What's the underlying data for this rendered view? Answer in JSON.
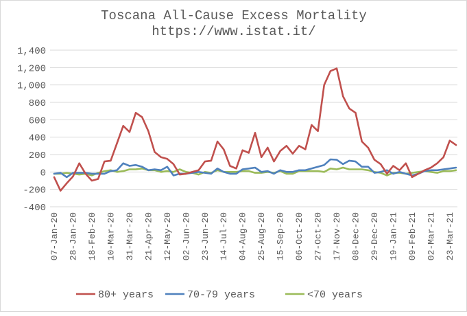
{
  "chart_data": {
    "type": "line",
    "title": "Toscana All-Cause Excess Mortality",
    "subtitle": "https://www.istat.it/",
    "xlabel": "",
    "ylabel": "",
    "ylim": [
      -400,
      1400
    ],
    "yticks": [
      "-400",
      "-200",
      "0",
      "200",
      "400",
      "600",
      "800",
      "1,000",
      "1,200",
      "1,400"
    ],
    "ytick_values": [
      -400,
      -200,
      0,
      200,
      400,
      600,
      800,
      1000,
      1200,
      1400
    ],
    "grid": true,
    "legend_position": "bottom",
    "x": [
      "07-Jan-20",
      "14-Jan-20",
      "21-Jan-20",
      "28-Jan-20",
      "04-Feb-20",
      "11-Feb-20",
      "18-Feb-20",
      "25-Feb-20",
      "03-Mar-20",
      "10-Mar-20",
      "17-Mar-20",
      "24-Mar-20",
      "31-Mar-20",
      "07-Apr-20",
      "14-Apr-20",
      "21-Apr-20",
      "28-Apr-20",
      "05-May-20",
      "12-May-20",
      "19-May-20",
      "26-May-20",
      "02-Jun-20",
      "09-Jun-20",
      "16-Jun-20",
      "23-Jun-20",
      "30-Jun-20",
      "07-Jul-20",
      "14-Jul-20",
      "21-Jul-20",
      "28-Jul-20",
      "04-Aug-20",
      "11-Aug-20",
      "18-Aug-20",
      "25-Aug-20",
      "01-Sep-20",
      "08-Sep-20",
      "15-Sep-20",
      "22-Sep-20",
      "29-Sep-20",
      "06-Oct-20",
      "13-Oct-20",
      "20-Oct-20",
      "27-Oct-20",
      "03-Nov-20",
      "10-Nov-20",
      "17-Nov-20",
      "24-Nov-20",
      "01-Dec-20",
      "08-Dec-20",
      "15-Dec-20",
      "22-Dec-20",
      "29-Dec-20",
      "05-Jan-21",
      "12-Jan-21",
      "19-Jan-21",
      "26-Jan-21",
      "02-Feb-21",
      "09-Feb-21",
      "16-Feb-21",
      "23-Feb-21",
      "02-Mar-21",
      "09-Mar-21",
      "16-Mar-21",
      "23-Mar-21",
      "30-Mar-21"
    ],
    "x_tick_labels": [
      "07-Jan-20",
      "28-Jan-20",
      "18-Feb-20",
      "10-Mar-20",
      "31-Mar-20",
      "21-Apr-20",
      "12-May-20",
      "02-Jun-20",
      "23-Jun-20",
      "14-Jul-20",
      "04-Aug-20",
      "25-Aug-20",
      "15-Sep-20",
      "06-Oct-20",
      "27-Oct-20",
      "17-Nov-20",
      "08-Dec-20",
      "29-Dec-20",
      "19-Jan-21",
      "09-Feb-21",
      "02-Mar-21",
      "23-Mar-21"
    ],
    "x_tick_every": 3,
    "series": [
      {
        "name": "80+ years",
        "color": "#c0504d",
        "values": [
          -60,
          -215,
          -130,
          -50,
          100,
          -20,
          -100,
          -80,
          120,
          130,
          330,
          530,
          460,
          680,
          630,
          470,
          230,
          170,
          150,
          90,
          -30,
          -20,
          0,
          20,
          120,
          130,
          350,
          260,
          70,
          40,
          250,
          220,
          450,
          170,
          280,
          120,
          240,
          300,
          210,
          300,
          260,
          540,
          470,
          1000,
          1160,
          1190,
          870,
          730,
          680,
          350,
          280,
          140,
          90,
          -20,
          70,
          20,
          100,
          -60,
          -20,
          20,
          50,
          100,
          170,
          360,
          310
        ]
      },
      {
        "name": "70-79 years",
        "color": "#4f81bd",
        "values": [
          -20,
          -10,
          -60,
          -10,
          -10,
          -10,
          -20,
          -20,
          -20,
          10,
          20,
          100,
          70,
          80,
          60,
          20,
          30,
          20,
          60,
          -40,
          -20,
          -20,
          -10,
          0,
          -10,
          -20,
          40,
          0,
          -20,
          -20,
          30,
          40,
          50,
          0,
          10,
          -20,
          20,
          0,
          0,
          20,
          20,
          40,
          60,
          80,
          145,
          140,
          90,
          130,
          120,
          60,
          60,
          -10,
          0,
          20,
          -20,
          0,
          -20,
          -40,
          -20,
          10,
          20,
          20,
          30,
          40,
          50
        ]
      },
      {
        "name": "<70 years",
        "color": "#9bbb59",
        "values": [
          -20,
          -20,
          -10,
          -20,
          -30,
          -20,
          -40,
          -10,
          10,
          20,
          0,
          10,
          30,
          30,
          40,
          20,
          20,
          0,
          10,
          0,
          30,
          0,
          -10,
          -30,
          0,
          -10,
          20,
          0,
          0,
          0,
          10,
          10,
          -10,
          -10,
          0,
          -10,
          10,
          -20,
          -20,
          10,
          10,
          10,
          10,
          0,
          40,
          30,
          50,
          30,
          30,
          30,
          20,
          0,
          -10,
          -40,
          -10,
          -10,
          -20,
          -10,
          0,
          10,
          0,
          -10,
          10,
          10,
          20
        ]
      }
    ]
  }
}
